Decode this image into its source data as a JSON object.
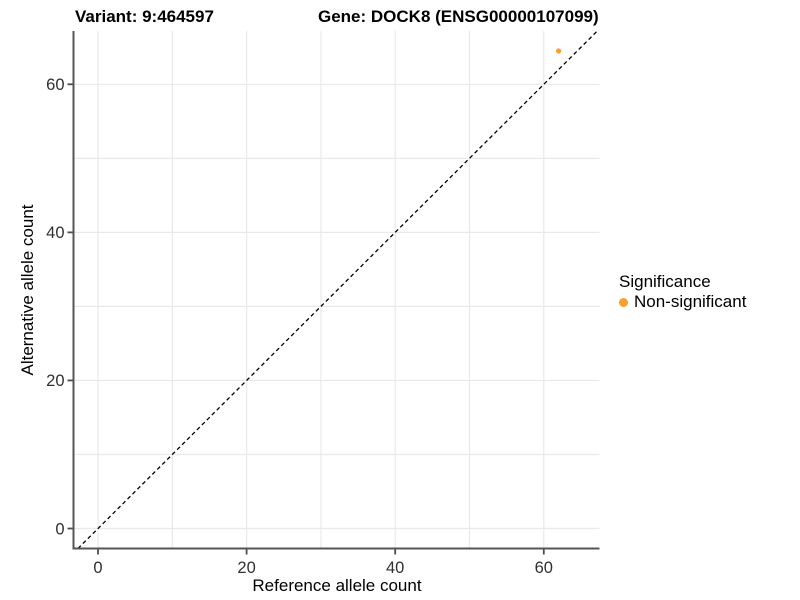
{
  "chart_data": {
    "type": "scatter",
    "titles": {
      "left": "Variant: 9:464597",
      "right": "Gene: DOCK8 (ENSG00000107099)"
    },
    "xlabel": "Reference allele count",
    "ylabel": "Alternative allele count",
    "xlim": [
      -3.3,
      67.5
    ],
    "ylim": [
      -2.7,
      67.2
    ],
    "x_ticks": [
      0,
      20,
      40,
      60
    ],
    "y_ticks": [
      0,
      20,
      40,
      60
    ],
    "grid": true,
    "grid_step": 10,
    "reference_line": {
      "type": "identity",
      "slope": 1,
      "intercept": 0,
      "style": "dashed"
    },
    "series": [
      {
        "name": "Non-significant",
        "color": "#F8A029",
        "points": [
          {
            "x": 62,
            "y": 64.5
          }
        ]
      }
    ],
    "legend": {
      "title": "Significance",
      "position": "right",
      "items": [
        {
          "label": "Non-significant",
          "color": "#F8A029"
        }
      ]
    }
  },
  "colors": {
    "background": "#FFFFFF",
    "axis_line": "#555555",
    "tick_mark": "#4D4D4D",
    "tick_label": "#303030",
    "grid_line": "#E9E9E9",
    "reference_line": "#000000",
    "nonsignificant": "#F8A029"
  }
}
